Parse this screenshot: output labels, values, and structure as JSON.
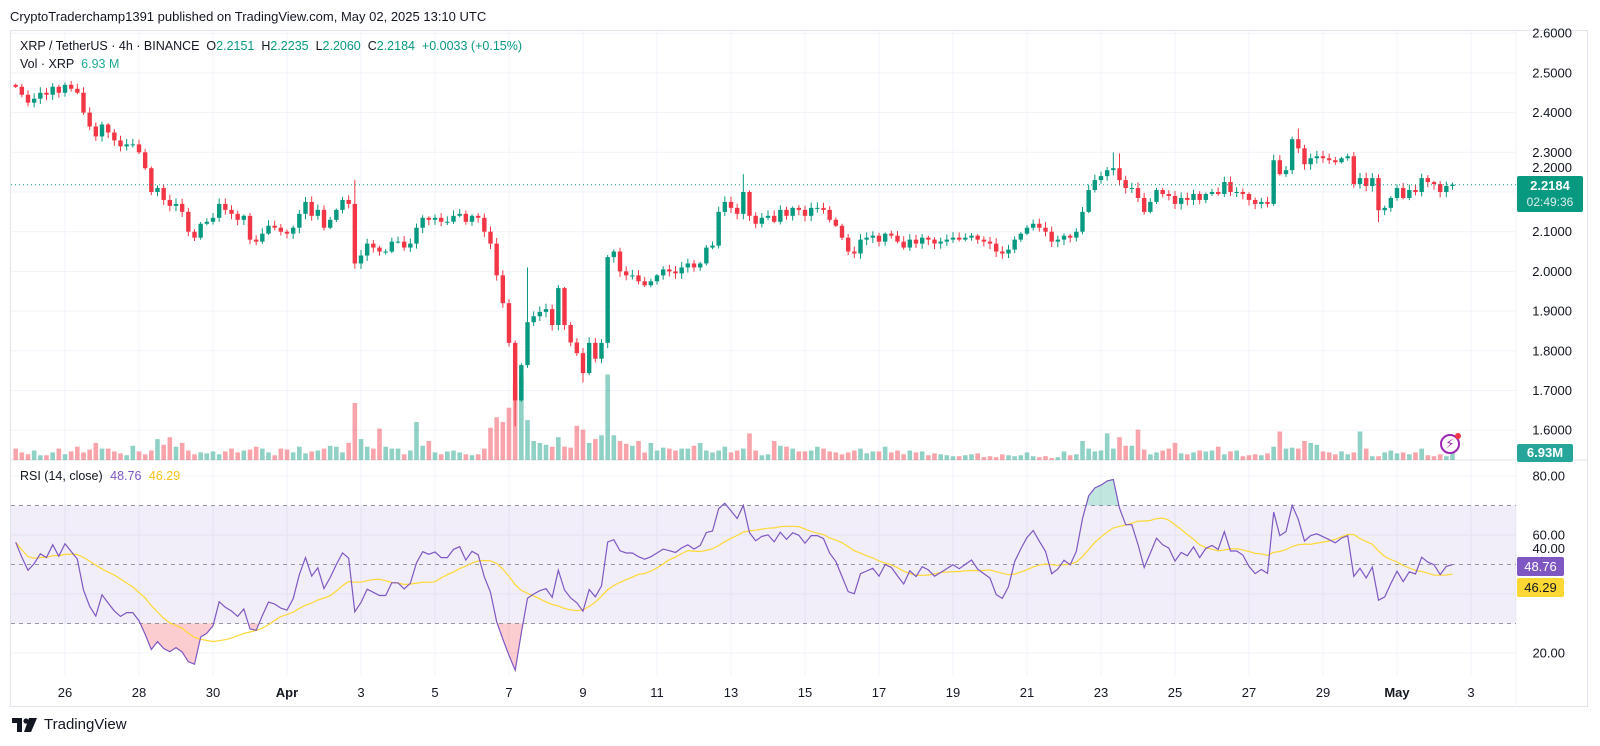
{
  "published": "CryptoTraderchamp1391 published on TradingView.com, May 02, 2025 13:10 UTC",
  "legend": {
    "symbol": "XRP / TetherUS · 4h · BINANCE",
    "o_label": "O",
    "o": "2.2151",
    "h_label": "H",
    "h": "2.2235",
    "l_label": "L",
    "l": "2.2060",
    "c_label": "C",
    "c": "2.2184",
    "change": "+0.0033 (+0.15%)",
    "vol_label": "Vol · XRP",
    "vol": "6.93 M"
  },
  "rsi_legend": {
    "label": "RSI (14, close)",
    "rsi": "48.76",
    "ma": "46.29"
  },
  "price_label": {
    "price": "2.2184",
    "countdown": "02:49:36"
  },
  "volume_label": "6.93M",
  "rsi_labels": {
    "rsi": "48.76",
    "ma": "46.29"
  },
  "footer_brand": "TradingView",
  "colors": {
    "up": "#089981",
    "down": "#f23645",
    "rsi": "#7e57c2",
    "rsi_ma": "#fdd835",
    "grid": "#f0f3fa"
  },
  "icons": {
    "alert": "lightning-icon",
    "brand": "tradingview-logo"
  },
  "chart_data": {
    "type": "candlestick",
    "symbol": "XRPUSDT",
    "interval": "4h",
    "start": "2025-03-24T16:00:00Z",
    "price_axis": {
      "ticks": [
        1.6,
        1.7,
        1.8,
        1.9,
        2.0,
        2.1,
        2.2,
        2.3,
        2.4,
        2.5,
        2.6
      ],
      "range": [
        1.5,
        2.6
      ]
    },
    "rsi_axis": {
      "ticks": [
        20,
        40,
        60,
        80
      ],
      "bands": [
        30,
        50,
        70
      ],
      "range": [
        12,
        85
      ]
    },
    "x_ticks": [
      {
        "label": "26",
        "date": "2025-03-26"
      },
      {
        "label": "28",
        "date": "2025-03-28"
      },
      {
        "label": "30",
        "date": "2025-03-30"
      },
      {
        "label": "Apr",
        "date": "2025-04-01",
        "bold": true
      },
      {
        "label": "3",
        "date": "2025-04-03"
      },
      {
        "label": "5",
        "date": "2025-04-05"
      },
      {
        "label": "7",
        "date": "2025-04-07"
      },
      {
        "label": "9",
        "date": "2025-04-09"
      },
      {
        "label": "11",
        "date": "2025-04-11"
      },
      {
        "label": "13",
        "date": "2025-04-13"
      },
      {
        "label": "15",
        "date": "2025-04-15"
      },
      {
        "label": "17",
        "date": "2025-04-17"
      },
      {
        "label": "19",
        "date": "2025-04-19"
      },
      {
        "label": "21",
        "date": "2025-04-21"
      },
      {
        "label": "23",
        "date": "2025-04-23"
      },
      {
        "label": "25",
        "date": "2025-04-25"
      },
      {
        "label": "27",
        "date": "2025-04-27"
      },
      {
        "label": "29",
        "date": "2025-04-29"
      },
      {
        "label": "May",
        "date": "2025-05-01",
        "bold": true
      },
      {
        "label": "3",
        "date": "2025-05-03"
      }
    ],
    "first_open": 2.47,
    "close": [
      2.465,
      2.445,
      2.425,
      2.435,
      2.45,
      2.445,
      2.465,
      2.45,
      2.47,
      2.46,
      2.45,
      2.4,
      2.365,
      2.34,
      2.37,
      2.35,
      2.33,
      2.315,
      2.32,
      2.32,
      2.3,
      2.26,
      2.2,
      2.21,
      2.18,
      2.165,
      2.17,
      2.15,
      2.1,
      2.085,
      2.12,
      2.125,
      2.135,
      2.17,
      2.155,
      2.145,
      2.13,
      2.14,
      2.08,
      2.075,
      2.095,
      2.115,
      2.11,
      2.1,
      2.095,
      2.11,
      2.145,
      2.175,
      2.14,
      2.155,
      2.11,
      2.13,
      2.155,
      2.18,
      2.17,
      2.02,
      2.04,
      2.07,
      2.06,
      2.05,
      2.05,
      2.075,
      2.075,
      2.06,
      2.07,
      2.11,
      2.135,
      2.13,
      2.135,
      2.125,
      2.125,
      2.14,
      2.145,
      2.125,
      2.14,
      2.135,
      2.1,
      2.07,
      1.99,
      1.92,
      1.82,
      1.675,
      1.764,
      1.872,
      1.887,
      1.898,
      1.905,
      1.865,
      1.958,
      1.865,
      1.821,
      1.794,
      1.744,
      1.82,
      1.78,
      1.82,
      2.036,
      2.05,
      2.0,
      1.99,
      1.99,
      1.975,
      1.965,
      1.975,
      1.99,
      2.005,
      2.0,
      1.995,
      2.01,
      2.02,
      2.01,
      2.02,
      2.06,
      2.065,
      2.15,
      2.175,
      2.16,
      2.145,
      2.2,
      2.14,
      2.12,
      2.135,
      2.14,
      2.125,
      2.155,
      2.14,
      2.16,
      2.155,
      2.14,
      2.16,
      2.16,
      2.155,
      2.13,
      2.115,
      2.085,
      2.05,
      2.045,
      2.08,
      2.085,
      2.09,
      2.075,
      2.095,
      2.09,
      2.075,
      2.06,
      2.08,
      2.07,
      2.085,
      2.08,
      2.07,
      2.075,
      2.08,
      2.085,
      2.08,
      2.085,
      2.09,
      2.08,
      2.075,
      2.07,
      2.05,
      2.045,
      2.055,
      2.08,
      2.095,
      2.11,
      2.12,
      2.11,
      2.1,
      2.075,
      2.08,
      2.09,
      2.085,
      2.1,
      2.15,
      2.205,
      2.23,
      2.24,
      2.255,
      2.26,
      2.23,
      2.21,
      2.21,
      2.185,
      2.15,
      2.175,
      2.205,
      2.195,
      2.19,
      2.17,
      2.185,
      2.18,
      2.195,
      2.18,
      2.195,
      2.2,
      2.195,
      2.225,
      2.2,
      2.2,
      2.195,
      2.18,
      2.17,
      2.175,
      2.17,
      2.28,
      2.245,
      2.255,
      2.333,
      2.31,
      2.27,
      2.285,
      2.29,
      2.285,
      2.28,
      2.275,
      2.285,
      2.29,
      2.22,
      2.235,
      2.215,
      2.235,
      2.154,
      2.16,
      2.185,
      2.21,
      2.185,
      2.205,
      2.2,
      2.235,
      2.225,
      2.22,
      2.2,
      2.2151,
      2.2184
    ],
    "high_overrides": {
      "55": 2.23,
      "83": 2.01,
      "118": 2.245,
      "178": 2.3,
      "179": 2.297,
      "208": 2.36,
      "233": 2.2235
    },
    "low_overrides": {
      "81": 1.61,
      "92": 1.72,
      "221": 2.124,
      "233": 2.206
    },
    "volume_unit": "M XRP",
    "volume": [
      12,
      8,
      6,
      10,
      5,
      5,
      8,
      12,
      6,
      9,
      14,
      8,
      11,
      18,
      12,
      12,
      9,
      7,
      5,
      15,
      9,
      6,
      10,
      22,
      16,
      24,
      14,
      18,
      10,
      6,
      8,
      7,
      9,
      6,
      9,
      12,
      8,
      10,
      11,
      14,
      12,
      8,
      5,
      12,
      11,
      8,
      14,
      7,
      9,
      10,
      12,
      15,
      14,
      8,
      18,
      60,
      22,
      14,
      12,
      33,
      14,
      12,
      12,
      6,
      10,
      40,
      15,
      20,
      8,
      6,
      9,
      10,
      8,
      6,
      5,
      6,
      12,
      34,
      45,
      40,
      55,
      80,
      85,
      42,
      20,
      18,
      16,
      14,
      24,
      14,
      13,
      36,
      32,
      18,
      22,
      26,
      90,
      26,
      20,
      17,
      15,
      20,
      8,
      18,
      10,
      13,
      12,
      10,
      12,
      12,
      15,
      18,
      10,
      8,
      10,
      14,
      8,
      10,
      12,
      28,
      10,
      5,
      6,
      20,
      15,
      14,
      12,
      9,
      9,
      10,
      14,
      12,
      9,
      8,
      6,
      8,
      10,
      12,
      7,
      9,
      9,
      14,
      8,
      10,
      6,
      10,
      8,
      9,
      5,
      7,
      6,
      5,
      4,
      4,
      5,
      6,
      7,
      3,
      4,
      3,
      6,
      5,
      4,
      5,
      8,
      4,
      3,
      4,
      2,
      3,
      9,
      5,
      6,
      20,
      12,
      9,
      10,
      28,
      12,
      24,
      15,
      15,
      32,
      11,
      6,
      8,
      10,
      12,
      18,
      7,
      6,
      8,
      10,
      9,
      10,
      14,
      6,
      9,
      10,
      4,
      5,
      6,
      5,
      7,
      14,
      30,
      12,
      13,
      12,
      20,
      18,
      16,
      9,
      8,
      6,
      9,
      6,
      8,
      30,
      12,
      4,
      4,
      8,
      10,
      7,
      8,
      6,
      8,
      12,
      5,
      4,
      6,
      4,
      6.93
    ],
    "rsi": {
      "length": 14,
      "source": "close",
      "last": 48.76,
      "ma_last": 46.29
    }
  }
}
